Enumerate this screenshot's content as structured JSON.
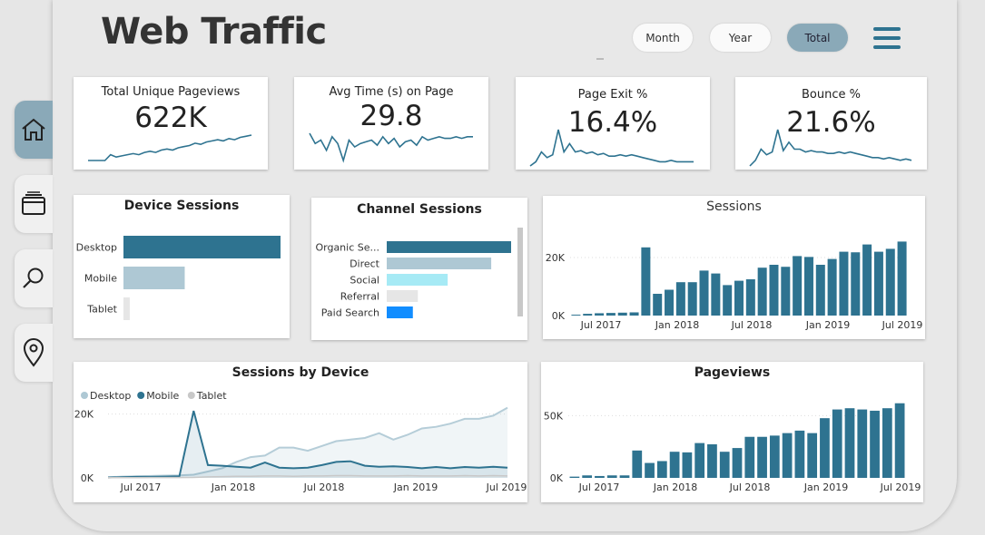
{
  "header": {
    "title": "Web Traffic",
    "filters": [
      {
        "label": "Month",
        "active": false
      },
      {
        "label": "Year",
        "active": false
      },
      {
        "label": "Total",
        "active": true
      }
    ]
  },
  "sidebar": {
    "items": [
      {
        "name": "home-icon",
        "active": true
      },
      {
        "name": "browser-window-icon",
        "active": false
      },
      {
        "name": "search-icon",
        "active": false
      },
      {
        "name": "location-pin-icon",
        "active": false
      }
    ]
  },
  "kpis": [
    {
      "label": "Total Unique Pageviews",
      "value": "622K"
    },
    {
      "label": "Avg Time (s) on Page",
      "value": "29.8"
    },
    {
      "label": "Page Exit %",
      "value": "16.4%"
    },
    {
      "label": "Bounce %",
      "value": "21.6%"
    }
  ],
  "colors": {
    "primary": "#2e7390",
    "light": "#aec8d4",
    "tablet": "#e6e6e6",
    "social": "#a6eaf5",
    "paid": "#118dff",
    "accent_pill": "#8aa9b8"
  },
  "chart_data": [
    {
      "id": "kpi-unique-pageviews-spark",
      "type": "line",
      "values": [
        3,
        3,
        3,
        3,
        8,
        6,
        7,
        8,
        9,
        8,
        10,
        11,
        10,
        12,
        13,
        12,
        14,
        15,
        16,
        18,
        17,
        19,
        20,
        21,
        20,
        22,
        21,
        23,
        24,
        25
      ]
    },
    {
      "id": "kpi-avg-time-spark",
      "type": "line",
      "values": [
        24,
        18,
        20,
        14,
        22,
        18,
        8,
        20,
        16,
        18,
        19,
        20,
        17,
        22,
        18,
        21,
        16,
        19,
        20,
        17,
        22,
        20,
        21,
        22,
        21,
        21,
        22,
        21,
        22,
        22
      ]
    },
    {
      "id": "kpi-page-exit-spark",
      "type": "line",
      "values": [
        2,
        5,
        12,
        8,
        10,
        28,
        12,
        18,
        12,
        13,
        11,
        12,
        10,
        11,
        9,
        9,
        10,
        9,
        10,
        9,
        8,
        7,
        6,
        5,
        5,
        6,
        5,
        5,
        5,
        5
      ]
    },
    {
      "id": "kpi-bounce-spark",
      "type": "line",
      "values": [
        2,
        6,
        14,
        10,
        12,
        28,
        13,
        19,
        14,
        14,
        12,
        13,
        12,
        12,
        11,
        11,
        12,
        11,
        12,
        11,
        10,
        9,
        8,
        8,
        7,
        8,
        7,
        6,
        7,
        6
      ]
    },
    {
      "id": "device-sessions",
      "type": "bar",
      "orientation": "horizontal",
      "title": "Device Sessions",
      "categories": [
        "Desktop",
        "Mobile",
        "Tablet"
      ],
      "values": [
        100,
        39,
        4
      ]
    },
    {
      "id": "channel-sessions",
      "type": "bar",
      "orientation": "horizontal",
      "title": "Channel Sessions",
      "categories": [
        "Organic Se...",
        "Direct",
        "Social",
        "Referral",
        "Paid Search"
      ],
      "values": [
        100,
        84,
        49,
        25,
        21
      ]
    },
    {
      "id": "sessions",
      "type": "bar",
      "title": "Sessions",
      "x_ticks": [
        "Jul 2017",
        "Jan 2018",
        "Jul 2018",
        "Jan 2019",
        "Jul 2019"
      ],
      "y_ticks": [
        "0K",
        "20K"
      ],
      "ylim": [
        0,
        30000
      ],
      "values": [
        300,
        600,
        800,
        900,
        1000,
        1100,
        23500,
        7500,
        8900,
        11500,
        11500,
        15500,
        14500,
        10500,
        12000,
        12500,
        16500,
        17500,
        16800,
        20500,
        20200,
        17500,
        19500,
        22000,
        21800,
        24500,
        22000,
        23000,
        25500
      ]
    },
    {
      "id": "sessions-by-device",
      "type": "area",
      "title": "Sessions by Device",
      "legend": [
        "Desktop",
        "Mobile",
        "Tablet"
      ],
      "x_ticks": [
        "Jul 2017",
        "Jan 2018",
        "Jul 2018",
        "Jan 2019",
        "Jul 2019"
      ],
      "y_ticks": [
        "0K",
        "20K"
      ],
      "ylim": [
        0,
        27000
      ],
      "series": [
        {
          "name": "Desktop",
          "values": [
            200,
            400,
            500,
            600,
            700,
            800,
            1000,
            2000,
            3000,
            5000,
            6500,
            7000,
            9500,
            9500,
            8500,
            10000,
            11500,
            12000,
            12500,
            14000,
            12000,
            13500,
            15500,
            16000,
            17000,
            18500,
            18500,
            19500,
            22000
          ]
        },
        {
          "name": "Mobile",
          "values": [
            100,
            200,
            300,
            300,
            400,
            500,
            21000,
            4000,
            3800,
            3500,
            3200,
            4800,
            3200,
            3000,
            3200,
            4000,
            5000,
            5200,
            3800,
            3500,
            3600,
            3400,
            3000,
            3400,
            3000,
            3400,
            3200,
            3500,
            3200
          ]
        },
        {
          "name": "Tablet",
          "values": [
            50,
            60,
            80,
            100,
            100,
            120,
            150,
            300,
            400,
            500,
            500,
            600,
            600,
            500,
            600,
            600,
            700,
            700,
            600,
            600,
            600,
            700,
            600,
            600,
            600,
            700,
            600,
            700,
            600
          ]
        }
      ]
    },
    {
      "id": "pageviews",
      "type": "bar",
      "title": "Pageviews",
      "x_ticks": [
        "Jul 2017",
        "Jan 2018",
        "Jul 2018",
        "Jan 2019",
        "Jul 2019"
      ],
      "y_ticks": [
        "0K",
        "50K"
      ],
      "ylim": [
        0,
        70000
      ],
      "values": [
        1000,
        2000,
        1500,
        2000,
        2000,
        22000,
        12000,
        13500,
        21000,
        20500,
        28000,
        27000,
        21000,
        24000,
        33000,
        33000,
        34000,
        36000,
        38000,
        36000,
        48000,
        55000,
        56000,
        55000,
        54000,
        56000,
        60000
      ]
    }
  ]
}
